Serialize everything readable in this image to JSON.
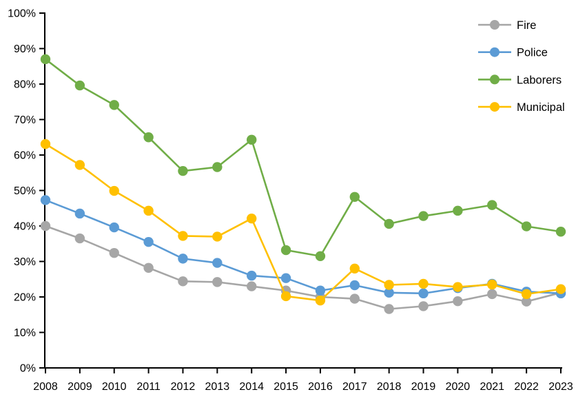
{
  "chart_data": {
    "type": "line",
    "title": "",
    "xlabel": "",
    "ylabel": "",
    "x": [
      2008,
      2009,
      2010,
      2011,
      2012,
      2013,
      2014,
      2015,
      2016,
      2017,
      2018,
      2019,
      2020,
      2021,
      2022,
      2023
    ],
    "series": [
      {
        "name": "Fire",
        "color": "#A6A6A6",
        "values": [
          40.0,
          36.5,
          32.4,
          28.2,
          24.4,
          24.2,
          23.0,
          21.8,
          20.0,
          19.5,
          16.6,
          17.4,
          18.8,
          20.8,
          18.7,
          21.2
        ]
      },
      {
        "name": "Police",
        "color": "#5B9BD5",
        "values": [
          47.3,
          43.5,
          39.6,
          35.5,
          30.8,
          29.6,
          26.0,
          25.3,
          21.8,
          23.3,
          21.2,
          21.0,
          22.5,
          23.7,
          21.5,
          21.0
        ]
      },
      {
        "name": "Laborers",
        "color": "#70AD47",
        "values": [
          87.0,
          79.6,
          74.1,
          65.0,
          55.5,
          56.6,
          64.3,
          33.2,
          31.5,
          48.2,
          40.6,
          42.8,
          44.3,
          45.9,
          39.9,
          38.4
        ]
      },
      {
        "name": "Municipal",
        "color": "#FFC000",
        "values": [
          63.1,
          57.2,
          49.9,
          44.3,
          37.2,
          37.0,
          42.1,
          20.2,
          19.0,
          28.0,
          23.4,
          23.7,
          22.8,
          23.5,
          20.8,
          22.2
        ]
      }
    ],
    "ylim": [
      0,
      100
    ],
    "y_tick_values": [
      0,
      10,
      20,
      30,
      40,
      50,
      60,
      70,
      80,
      90,
      100
    ],
    "y_ticks": [
      "0%",
      "10%",
      "20%",
      "30%",
      "40%",
      "50%",
      "60%",
      "70%",
      "80%",
      "90%",
      "100%"
    ],
    "x_ticks": [
      "2008",
      "2009",
      "2010",
      "2011",
      "2012",
      "2013",
      "2014",
      "2015",
      "2016",
      "2017",
      "2018",
      "2019",
      "2020",
      "2021",
      "2022",
      "2023"
    ],
    "grid": false,
    "legend_position": "top-right",
    "axis_color": "#000000",
    "text_color": "#000000",
    "background_color": "#FFFFFF"
  }
}
